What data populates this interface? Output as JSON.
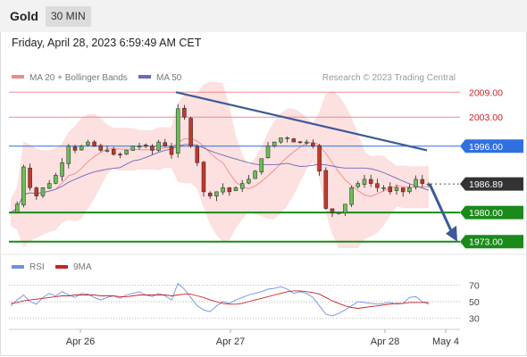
{
  "header": {
    "symbol": "Gold",
    "timeframe": "30 MIN",
    "datetime": "Friday, April 28, 2023 6:59:49 AM CET",
    "credit": "Research © 2023 Trading Central"
  },
  "legend": {
    "ma20_label": "MA 20 + Bollinger Bands",
    "ma50_label": "MA 50",
    "rsi_label": "RSI",
    "rsi_ma_label": "9MA"
  },
  "colors": {
    "ma20": "#f08a8a",
    "bollinger_fill": "#fde0e0",
    "ma50": "#6a6ab8",
    "candle_up": "#6bbf56",
    "candle_down": "#c0392b",
    "candle_outline": "#222222",
    "resistance": "#f08a8a",
    "pivot": "#2f6fe0",
    "support": "#1a8a1a",
    "last_price": "#333333",
    "trendline": "#3a5a9a",
    "rsi": "#6f8fe0",
    "rsi_ma": "#cc2222"
  },
  "chart_data": [
    {
      "type": "candlestick",
      "x": [
        "Apr 26",
        "Apr 27",
        "Apr 28",
        "May 4"
      ],
      "ylim": [
        1971,
        2011
      ],
      "levels": [
        {
          "label": "2009.00",
          "value": 2009.0,
          "kind": "resistance"
        },
        {
          "label": "2003.00",
          "value": 2003.0,
          "kind": "resistance"
        },
        {
          "label": "1996.00",
          "value": 1996.0,
          "kind": "pivot"
        },
        {
          "label": "1986.89",
          "value": 1986.89,
          "kind": "last"
        },
        {
          "label": "1980.00",
          "value": 1980.0,
          "kind": "support"
        },
        {
          "label": "1973.00",
          "value": 1973.0,
          "kind": "support"
        }
      ],
      "close_path": [
        1980,
        1982,
        1991,
        1986,
        1984,
        1986,
        1987,
        1989,
        1992,
        1996,
        1995,
        1996,
        1997,
        1996,
        1995,
        1995,
        1994,
        1994,
        1995,
        1996,
        1996,
        1996,
        1995,
        1997,
        1996,
        1994,
        2005,
        2003,
        1996,
        1992,
        1985,
        1984,
        1985,
        1986,
        1985,
        1986,
        1987,
        1988,
        1990,
        1993,
        1996,
        1997,
        1998,
        1998,
        1997,
        1997,
        1997,
        1996,
        1990,
        1981,
        1980,
        1980,
        1982,
        1986,
        1987,
        1988,
        1987,
        1986,
        1986,
        1985,
        1986,
        1985,
        1986,
        1988,
        1987,
        1986.9
      ],
      "trendline": {
        "from": 2009.0,
        "to": 1995.0
      },
      "arrow": {
        "from": 1986.89,
        "to": 1973.0
      }
    },
    {
      "type": "line",
      "title": "RSI",
      "ylim": [
        20,
        80
      ],
      "ticks": [
        70,
        50,
        30
      ],
      "series": [
        {
          "name": "RSI",
          "values": [
            45,
            52,
            58,
            50,
            47,
            55,
            60,
            57,
            62,
            58,
            55,
            60,
            59,
            55,
            52,
            55,
            57,
            54,
            58,
            60,
            62,
            58,
            56,
            60,
            57,
            52,
            72,
            65,
            55,
            45,
            40,
            38,
            45,
            50,
            48,
            52,
            55,
            58,
            60,
            62,
            65,
            66,
            68,
            65,
            60,
            62,
            60,
            55,
            45,
            35,
            33,
            36,
            40,
            45,
            50,
            49,
            48,
            47,
            48,
            49,
            47,
            48,
            55,
            56,
            50,
            47
          ]
        },
        {
          "name": "9MA",
          "values": [
            48,
            49,
            51,
            52,
            53,
            54,
            55,
            56,
            57,
            57,
            58,
            58,
            58,
            58,
            57,
            57,
            57,
            56,
            56,
            57,
            58,
            58,
            58,
            58,
            58,
            57,
            58,
            59,
            59,
            57,
            55,
            52,
            50,
            48,
            47,
            47,
            48,
            50,
            52,
            54,
            56,
            58,
            60,
            62,
            63,
            63,
            62,
            61,
            59,
            55,
            51,
            48,
            45,
            43,
            42,
            43,
            44,
            45,
            46,
            47,
            48,
            48,
            49,
            49,
            49,
            49
          ]
        }
      ]
    }
  ]
}
